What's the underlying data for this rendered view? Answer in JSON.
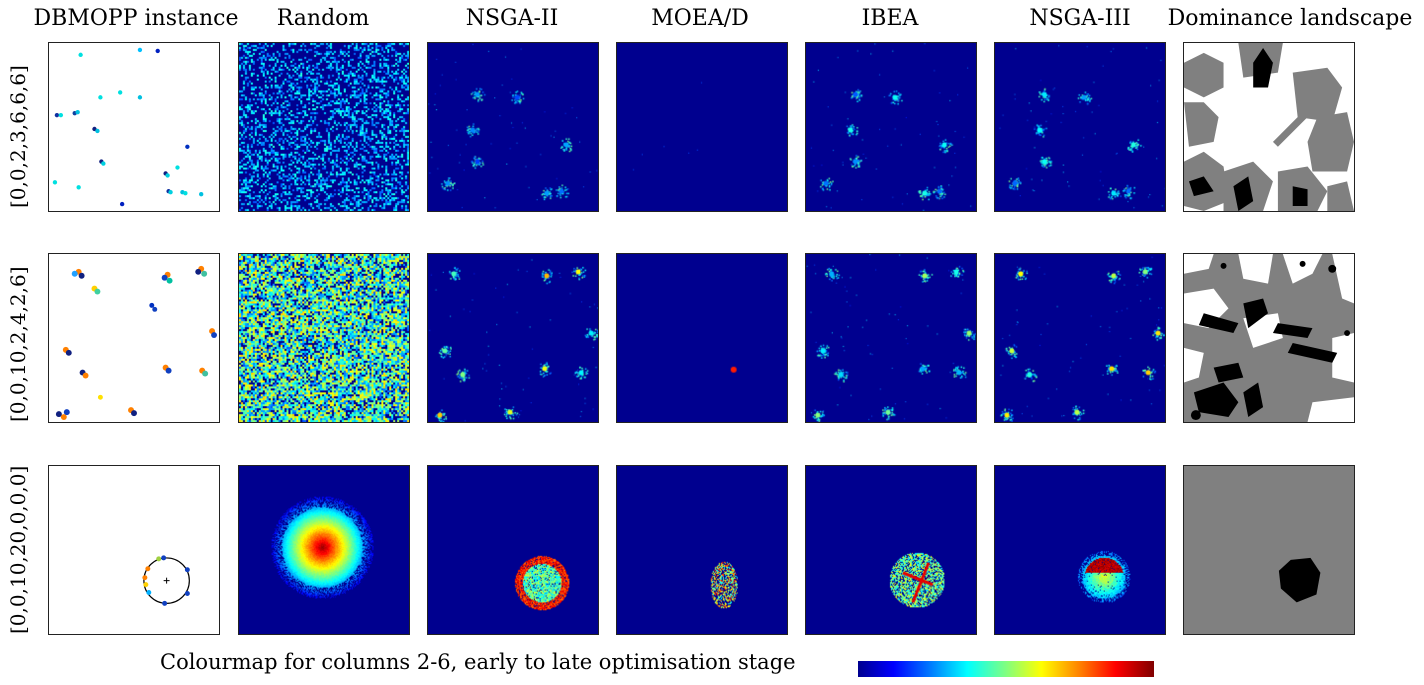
{
  "columns": [
    {
      "title": "DBMOPP instance"
    },
    {
      "title": "Random"
    },
    {
      "title": "NSGA-II"
    },
    {
      "title": "MOEA/D"
    },
    {
      "title": "IBEA"
    },
    {
      "title": "NSGA-III"
    },
    {
      "title": "Dominance landscape"
    }
  ],
  "rows": [
    {
      "label": "[0,0,2,3,6,6,6]"
    },
    {
      "label": "[0,0,10,2,4,2,6]"
    },
    {
      "label": "[0,0,10,20,0,0,0]"
    }
  ],
  "colourmap": {
    "label": "Colourmap for columns 2-6, early to late optimisation stage",
    "colors": [
      "#00008f",
      "#0000ff",
      "#0080ff",
      "#00ffff",
      "#80ff80",
      "#ffff00",
      "#ff8000",
      "#ff0000",
      "#800000"
    ]
  }
}
